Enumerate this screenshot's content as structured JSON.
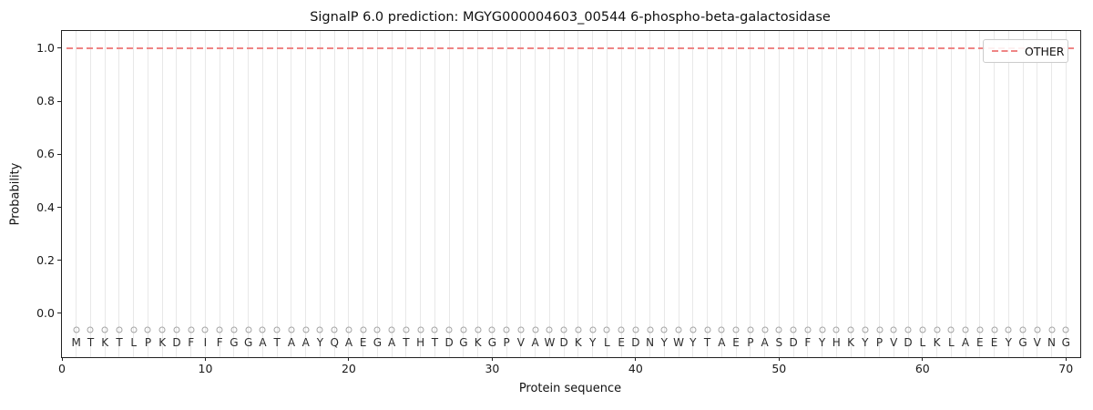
{
  "chart_data": {
    "type": "line",
    "title": "SignalP 6.0 prediction: MGYG000004603_00544 6-phospho-beta-galactosidase",
    "xlabel": "Protein sequence",
    "ylabel": "Probability",
    "xlim": [
      0,
      71
    ],
    "ylim": [
      -0.165,
      1.065
    ],
    "xticks": [
      {
        "value": 0,
        "label": "0"
      },
      {
        "value": 10,
        "label": "10"
      },
      {
        "value": 20,
        "label": "20"
      },
      {
        "value": 30,
        "label": "30"
      },
      {
        "value": 40,
        "label": "40"
      },
      {
        "value": 50,
        "label": "50"
      },
      {
        "value": 60,
        "label": "60"
      },
      {
        "value": 70,
        "label": "70"
      }
    ],
    "yticks": [
      {
        "value": 0.0,
        "label": "0.0"
      },
      {
        "value": 0.2,
        "label": "0.2"
      },
      {
        "value": 0.4,
        "label": "0.4"
      },
      {
        "value": 0.6,
        "label": "0.6"
      },
      {
        "value": 0.8,
        "label": "0.8"
      },
      {
        "value": 1.0,
        "label": "1.0"
      }
    ],
    "grid": {
      "vertical_line_per_residue": true,
      "color": "#e8e8e8"
    },
    "legend": {
      "position": "upper-right",
      "entries": [
        {
          "label": "OTHER",
          "color": "#ef8585",
          "linestyle": "dashed"
        }
      ]
    },
    "series": [
      {
        "name": "OTHER",
        "linestyle": "dashed",
        "color": "#ef8585",
        "y_constant": 1.0,
        "x_start": 1,
        "x_end": 70
      }
    ],
    "sequence": {
      "residues": "MTKTLPKDFIFGGATAAYQAEGATHTDGKGPVAWDKYLEDNYWYTAEPASDFYHKYPVDLKLAEEYGVNG",
      "length": 70,
      "marker": "open-circle",
      "marker_y": -0.062,
      "letter_y": -0.11,
      "marker_color": "#a3a3a3",
      "letter_color": "#2b2b2b"
    }
  },
  "colors": {
    "background": "#ffffff",
    "spine": "#222222",
    "line": "#ef8585",
    "grid": "#e8e8e8",
    "tick_label": "#1a1a1a"
  }
}
